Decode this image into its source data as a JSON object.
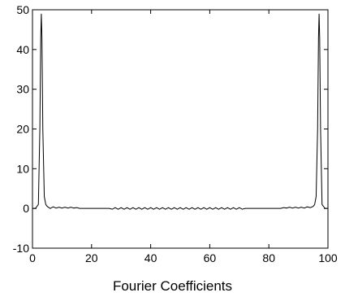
{
  "chart_data": {
    "type": "line",
    "title": "",
    "xlabel": "Fourier Coefficients",
    "ylabel": "",
    "xlim": [
      0,
      100
    ],
    "ylim": [
      -10,
      50
    ],
    "xticks": [
      "0",
      "20",
      "40",
      "60",
      "80",
      "100"
    ],
    "yticks": [
      "-10",
      "0",
      "10",
      "20",
      "30",
      "40",
      "50"
    ],
    "grid": false,
    "series": [
      {
        "color": "#000000",
        "points": [
          [
            0,
            0
          ],
          [
            1,
            0
          ],
          [
            2,
            1
          ],
          [
            2.5,
            20
          ],
          [
            2.8,
            43
          ],
          [
            3,
            49
          ],
          [
            3.2,
            43
          ],
          [
            3.5,
            20
          ],
          [
            4,
            3
          ],
          [
            4.5,
            1
          ],
          [
            5,
            0.5
          ],
          [
            6,
            0
          ],
          [
            7,
            0.4
          ],
          [
            8,
            0.1
          ],
          [
            9,
            0.3
          ],
          [
            10,
            0.1
          ],
          [
            11,
            0.3
          ],
          [
            12,
            0.1
          ],
          [
            13,
            0.3
          ],
          [
            14,
            0.1
          ],
          [
            15,
            0.2
          ],
          [
            16,
            0
          ],
          [
            18,
            0
          ],
          [
            20,
            0
          ],
          [
            22,
            0
          ],
          [
            24,
            0
          ],
          [
            26,
            0
          ],
          [
            27,
            -0.2
          ],
          [
            28,
            0.2
          ],
          [
            29,
            -0.2
          ],
          [
            30,
            0.2
          ],
          [
            31,
            -0.2
          ],
          [
            32,
            0.2
          ],
          [
            33,
            -0.2
          ],
          [
            34,
            0.2
          ],
          [
            35,
            -0.2
          ],
          [
            36,
            0.2
          ],
          [
            37,
            -0.2
          ],
          [
            38,
            0.2
          ],
          [
            39,
            -0.2
          ],
          [
            40,
            0.2
          ],
          [
            41,
            -0.2
          ],
          [
            42,
            0.2
          ],
          [
            43,
            -0.2
          ],
          [
            44,
            0.2
          ],
          [
            45,
            -0.2
          ],
          [
            46,
            0.2
          ],
          [
            47,
            -0.2
          ],
          [
            48,
            0.2
          ],
          [
            49,
            -0.2
          ],
          [
            50,
            0.2
          ],
          [
            51,
            -0.2
          ],
          [
            52,
            0.2
          ],
          [
            53,
            -0.2
          ],
          [
            54,
            0.2
          ],
          [
            55,
            -0.2
          ],
          [
            56,
            0.2
          ],
          [
            57,
            -0.2
          ],
          [
            58,
            0.2
          ],
          [
            59,
            -0.2
          ],
          [
            60,
            0.2
          ],
          [
            61,
            -0.2
          ],
          [
            62,
            0.2
          ],
          [
            63,
            -0.2
          ],
          [
            64,
            0.2
          ],
          [
            65,
            -0.2
          ],
          [
            66,
            0.2
          ],
          [
            67,
            -0.2
          ],
          [
            68,
            0.2
          ],
          [
            69,
            -0.2
          ],
          [
            70,
            0.2
          ],
          [
            71,
            -0.2
          ],
          [
            72,
            0
          ],
          [
            74,
            0
          ],
          [
            76,
            0
          ],
          [
            78,
            0
          ],
          [
            80,
            0
          ],
          [
            82,
            0
          ],
          [
            84,
            0
          ],
          [
            85,
            0.2
          ],
          [
            86,
            0.1
          ],
          [
            87,
            0.3
          ],
          [
            88,
            0.1
          ],
          [
            89,
            0.3
          ],
          [
            90,
            0.1
          ],
          [
            91,
            0.3
          ],
          [
            92,
            0.1
          ],
          [
            93,
            0.4
          ],
          [
            94,
            0.2
          ],
          [
            95,
            0.5
          ],
          [
            95.5,
            1
          ],
          [
            96,
            3
          ],
          [
            96.5,
            20
          ],
          [
            96.8,
            43
          ],
          [
            97,
            49
          ],
          [
            97.2,
            43
          ],
          [
            97.5,
            20
          ],
          [
            98,
            1
          ],
          [
            99,
            0
          ],
          [
            100,
            0
          ]
        ]
      }
    ]
  }
}
